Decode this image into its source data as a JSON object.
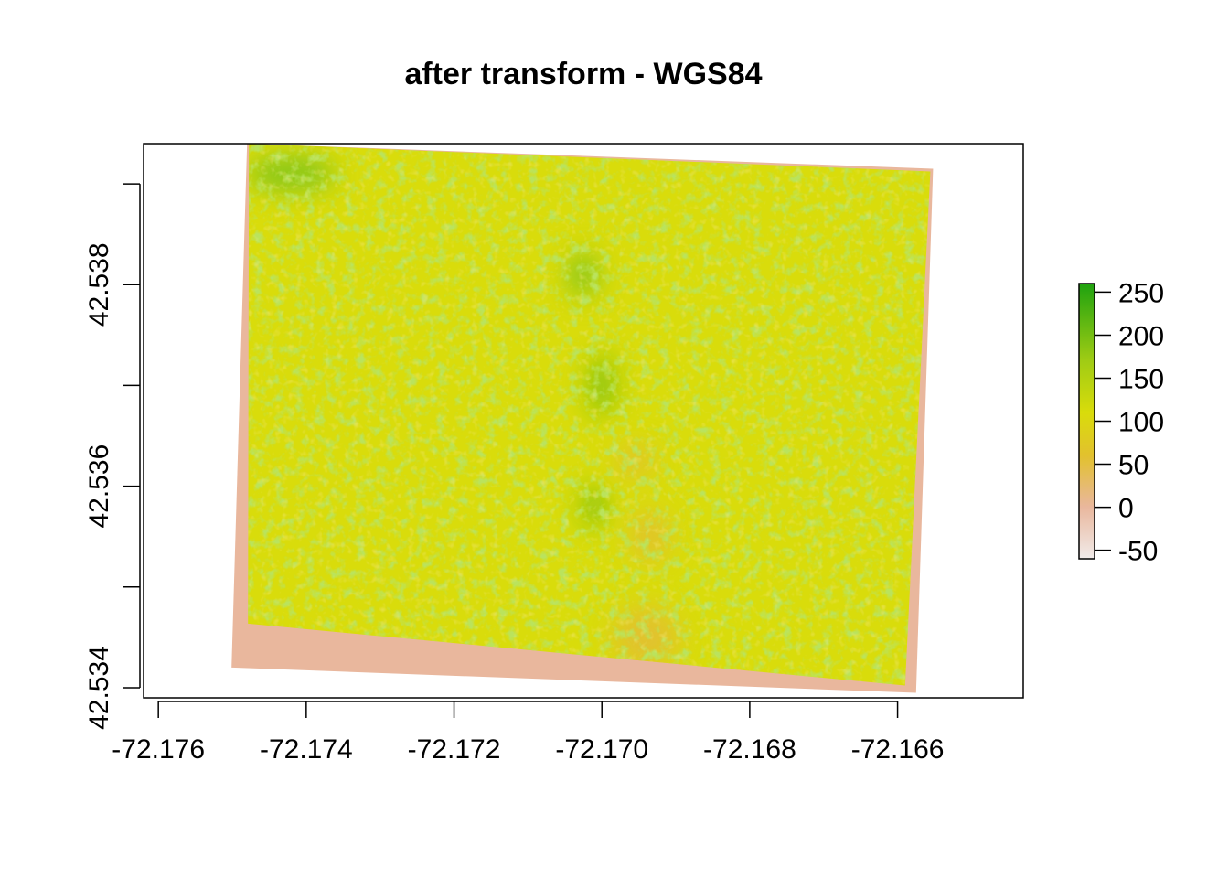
{
  "colors": {
    "background_fill": "#e9b79d",
    "raster_yellow": "#d9dc0b",
    "raster_green": "#7dc41c",
    "raster_dark_green": "#2aaa0f",
    "raster_orange": "#e2c12e",
    "legend_low": "#f1ebea",
    "legend_high": "#1fa20f"
  },
  "chart_data": {
    "type": "heatmap",
    "title": "after transform - WGS84",
    "xlabel": "",
    "ylabel": "",
    "x_ticks": [
      -72.176,
      -72.174,
      -72.172,
      -72.17,
      -72.168,
      -72.166
    ],
    "x_tick_labels": [
      "-72.176",
      "-72.174",
      "-72.172",
      "-72.170",
      "-72.168",
      "-72.166"
    ],
    "y_ticks": [
      42.534,
      42.535,
      42.536,
      42.537,
      42.538,
      42.539
    ],
    "y_tick_labels": [
      "42.534",
      "42.536",
      "42.538"
    ],
    "xlim": [
      -72.1762,
      -72.1643
    ],
    "ylim": [
      42.5339,
      42.5394
    ],
    "raster_corners": [
      {
        "lon": -72.1748,
        "lat": 42.5394
      },
      {
        "lon": -72.16552,
        "lat": 42.53915
      },
      {
        "lon": -72.16575,
        "lat": 42.53395
      },
      {
        "lon": -72.17501,
        "lat": 42.5342
      }
    ],
    "legend": {
      "ticks": [
        250,
        200,
        150,
        100,
        50,
        0,
        -50
      ],
      "tick_labels": [
        "250",
        "200",
        "150",
        "100",
        "50",
        "0",
        "-50"
      ],
      "range": [
        -60,
        260
      ],
      "color_stops": [
        {
          "value": -60,
          "color": "#f1ebea"
        },
        {
          "value": 0,
          "color": "#e9b79d"
        },
        {
          "value": 60,
          "color": "#e2c12e"
        },
        {
          "value": 110,
          "color": "#d9dc0b"
        },
        {
          "value": 170,
          "color": "#a0cc14"
        },
        {
          "value": 260,
          "color": "#1fa20f"
        }
      ],
      "placement": "right"
    },
    "features": [
      {
        "kind": "green_patch",
        "lon": -72.1742,
        "lat": 42.5391,
        "size_lon": 0.0012,
        "size_lat": 0.00035
      },
      {
        "kind": "green_patch",
        "lon": -72.17025,
        "lat": 42.5381,
        "size_lon": 0.0004,
        "size_lat": 0.00045
      },
      {
        "kind": "green_strip",
        "lon": -72.17,
        "lat": 42.537,
        "size_lon": 0.0003,
        "size_lat": 0.0006
      },
      {
        "kind": "green_strip",
        "lon": -72.1701,
        "lat": 42.5358,
        "size_lon": 0.0003,
        "size_lat": 0.0004
      },
      {
        "kind": "orange_clearing",
        "lon": -72.16955,
        "lat": 42.53625,
        "size_lon": 0.0005,
        "size_lat": 0.0003
      },
      {
        "kind": "orange_clearing",
        "lon": -72.16935,
        "lat": 42.5355,
        "size_lon": 0.0005,
        "size_lat": 0.0005
      },
      {
        "kind": "orange_clearing",
        "lon": -72.1694,
        "lat": 42.5345,
        "size_lon": 0.0009,
        "size_lat": 0.0006
      }
    ]
  }
}
